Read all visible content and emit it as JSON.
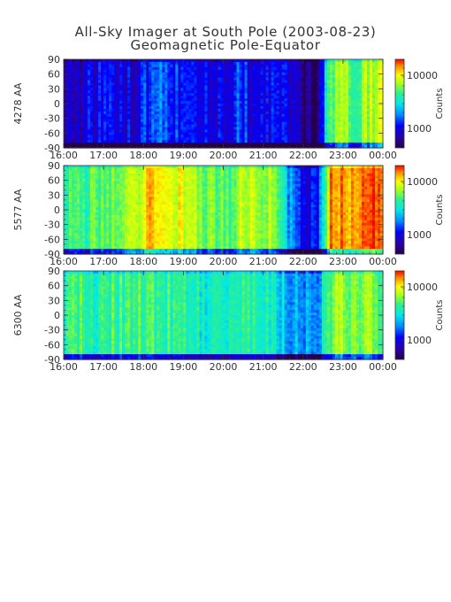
{
  "title": "All-Sky Imager at South Pole (2003-08-23)",
  "subtitle": "Geomagnetic Pole-Equator",
  "colorbar_label": "Counts",
  "chart_data": [
    {
      "type": "heatmap",
      "ylabel": "4278 AA",
      "xticks": [
        "16:00",
        "17:00",
        "18:00",
        "19:00",
        "20:00",
        "21:00",
        "22:00",
        "23:00",
        "00:00"
      ],
      "yticks": [
        90,
        60,
        30,
        0,
        -30,
        -60,
        -90
      ],
      "ylim": [
        -90,
        90
      ],
      "colorbar_ticks": [
        "10000",
        "1000"
      ],
      "colormap": [
        "#24004a",
        "#2a00a8",
        "#0000ff",
        "#0090ff",
        "#00e8e8",
        "#30f08a",
        "#a0ff20",
        "#ffff00",
        "#ff9000",
        "#ff0000"
      ],
      "intensity_profile": [
        0.18,
        0.18,
        0.19,
        0.2,
        0.2,
        0.19,
        0.21,
        0.3,
        0.28,
        0.22,
        0.21,
        0.2,
        0.2,
        0.22,
        0.25,
        0.21,
        0.2,
        0.19,
        0.13,
        0.07,
        0.05,
        0.6,
        0.72,
        0.55,
        0.66,
        0.7
      ]
    },
    {
      "type": "heatmap",
      "ylabel": "5577 AA",
      "xticks": [
        "16:00",
        "17:00",
        "18:00",
        "19:00",
        "20:00",
        "21:00",
        "22:00",
        "23:00",
        "00:00"
      ],
      "yticks": [
        90,
        60,
        30,
        0,
        -30,
        -60,
        -90
      ],
      "ylim": [
        -90,
        90
      ],
      "colorbar_ticks": [
        "10000",
        "1000"
      ],
      "colormap": [
        "#24004a",
        "#2a00a8",
        "#0000ff",
        "#0090ff",
        "#00e8e8",
        "#30f08a",
        "#a0ff20",
        "#ffff00",
        "#ff9000",
        "#ff0000"
      ],
      "intensity_profile": [
        0.5,
        0.58,
        0.55,
        0.62,
        0.6,
        0.66,
        0.7,
        0.85,
        0.8,
        0.74,
        0.66,
        0.62,
        0.58,
        0.6,
        0.68,
        0.72,
        0.66,
        0.55,
        0.3,
        0.2,
        0.22,
        0.88,
        0.92,
        0.85,
        0.95,
        0.9
      ]
    },
    {
      "type": "heatmap",
      "ylabel": "6300 AA",
      "xticks": [
        "16:00",
        "17:00",
        "18:00",
        "19:00",
        "20:00",
        "21:00",
        "22:00",
        "23:00",
        "00:00"
      ],
      "yticks": [
        90,
        60,
        30,
        0,
        -30,
        -60,
        -90
      ],
      "ylim": [
        -90,
        90
      ],
      "colorbar_ticks": [
        "10000",
        "1000"
      ],
      "colormap": [
        "#24004a",
        "#2a00a8",
        "#0000ff",
        "#0090ff",
        "#00e8e8",
        "#30f08a",
        "#a0ff20",
        "#ffff00",
        "#ff9000",
        "#ff0000"
      ],
      "intensity_profile": [
        0.5,
        0.55,
        0.52,
        0.56,
        0.54,
        0.55,
        0.56,
        0.57,
        0.55,
        0.52,
        0.5,
        0.48,
        0.52,
        0.54,
        0.55,
        0.53,
        0.5,
        0.44,
        0.36,
        0.33,
        0.35,
        0.62,
        0.66,
        0.6,
        0.64,
        0.58
      ]
    }
  ]
}
